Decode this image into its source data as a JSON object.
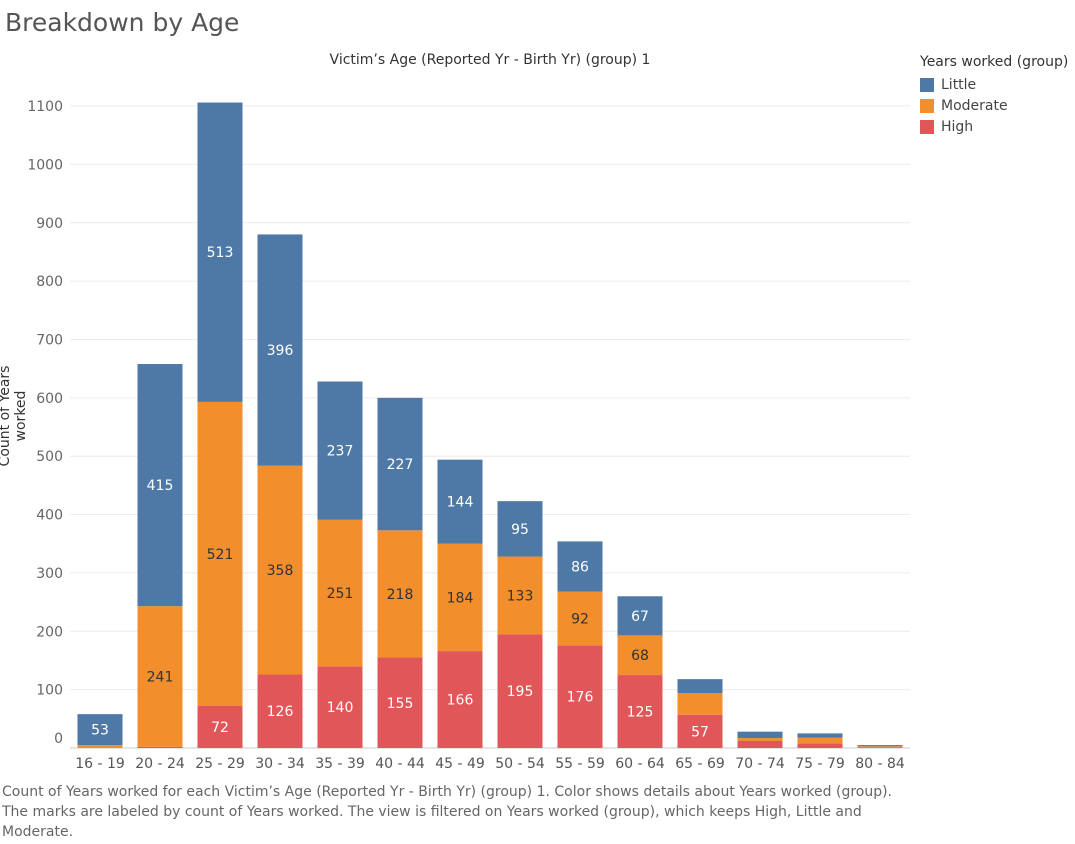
{
  "page": {
    "title": "Breakdown by Age",
    "caption": "Count of Years worked for each Victim’s Age (Reported Yr - Birth Yr) (group) 1.  Color shows details about Years worked (group). The marks are labeled by count of Years worked. The view is filtered on Years worked (group), which keeps High, Little and Moderate."
  },
  "chart_data": {
    "type": "bar",
    "stacked": true,
    "title": "Victim’s Age (Reported Yr - Birth Yr) (group) 1",
    "xlabel": "",
    "ylabel": "Count of Years worked",
    "ylim": [
      0,
      1100
    ],
    "yticks": [
      0,
      100,
      200,
      300,
      400,
      500,
      600,
      700,
      800,
      900,
      1000,
      1100
    ],
    "grid": true,
    "legend_position": "top-right",
    "legend_title": "Years worked (group)",
    "categories": [
      "16 - 19",
      "20 - 24",
      "25 - 29",
      "30 - 34",
      "35 - 39",
      "40 - 44",
      "45 - 49",
      "50 - 54",
      "55 - 59",
      "60 - 64",
      "65 - 69",
      "70 - 74",
      "75 - 79",
      "80 - 84"
    ],
    "series": [
      {
        "name": "Little",
        "color": "#4e79a7",
        "label_color": "#ffffff",
        "values": [
          53,
          415,
          513,
          396,
          237,
          227,
          144,
          95,
          86,
          67,
          24,
          11,
          7,
          2
        ],
        "labels": [
          "53",
          "415",
          "513",
          "396",
          "237",
          "227",
          "144",
          "95",
          "86",
          "67",
          "",
          "",
          "",
          ""
        ]
      },
      {
        "name": "Moderate",
        "color": "#f28e2b",
        "label_color": "#333333",
        "values": [
          5,
          241,
          521,
          358,
          251,
          218,
          184,
          133,
          92,
          68,
          37,
          5,
          10,
          2
        ],
        "labels": [
          "",
          "241",
          "521",
          "358",
          "251",
          "218",
          "184",
          "133",
          "92",
          "68",
          "",
          "",
          "",
          ""
        ]
      },
      {
        "name": "High",
        "color": "#e15759",
        "label_color": "#ffffff",
        "values": [
          0,
          2,
          72,
          126,
          140,
          155,
          166,
          195,
          176,
          125,
          57,
          12,
          8,
          1
        ],
        "labels": [
          "",
          "",
          "72",
          "126",
          "140",
          "155",
          "166",
          "195",
          "176",
          "125",
          "57",
          "",
          "",
          ""
        ]
      }
    ]
  }
}
